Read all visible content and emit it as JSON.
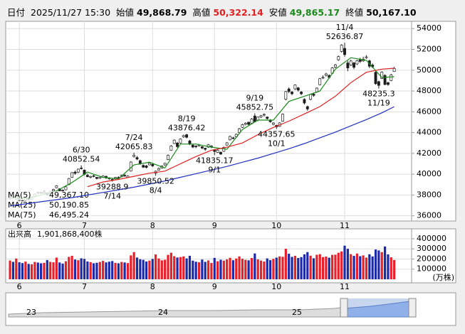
{
  "header": {
    "date_label": "日付",
    "date": "2025/11/27 15:30",
    "open_label": "始値",
    "open": "49,868.79",
    "high_label": "高値",
    "high": "50,322.14",
    "low_label": "安値",
    "low": "49,865.17",
    "close_label": "終値",
    "close": "50,167.10"
  },
  "chart_data": {
    "type": "candlestick",
    "candles": [
      [
        37620,
        37800,
        37560,
        37720
      ],
      [
        37800,
        37900,
        37640,
        37720
      ],
      [
        37600,
        38050,
        37560,
        37965
      ],
      [
        37700,
        37800,
        37420,
        37470
      ],
      [
        37550,
        37650,
        37300,
        37447
      ],
      [
        37500,
        37800,
        37450,
        37747
      ],
      [
        37700,
        37760,
        37480,
        37554
      ],
      [
        37600,
        37800,
        37530,
        37741
      ],
      [
        37850,
        38150,
        37800,
        38088
      ],
      [
        38250,
        38350,
        38100,
        38211
      ],
      [
        38250,
        38320,
        38100,
        38173
      ],
      [
        38200,
        38400,
        38150,
        38321
      ],
      [
        38200,
        38250,
        37950,
        38034
      ],
      [
        38100,
        38380,
        38050,
        38311
      ],
      [
        38400,
        38600,
        38350,
        38536
      ],
      [
        38700,
        38950,
        38650,
        38885
      ],
      [
        38600,
        38650,
        38350,
        38403
      ],
      [
        38450,
        38550,
        38250,
        38354
      ],
      [
        38500,
        38850,
        38450,
        38790
      ],
      [
        39000,
        39650,
        38950,
        39584
      ],
      [
        39700,
        40200,
        39650,
        40150
      ],
      [
        40200,
        40350,
        39950,
        40087
      ],
      [
        40200,
        40550,
        40100,
        40487
      ],
      [
        40600,
        40852.54,
        40450,
        40580
      ],
      [
        40400,
        40450,
        39900,
        39986
      ],
      [
        39900,
        40050,
        39700,
        39762
      ],
      [
        39700,
        39850,
        39600,
        39785
      ],
      [
        39850,
        39950,
        39700,
        39810
      ],
      [
        39700,
        39750,
        39500,
        39587
      ],
      [
        39600,
        39750,
        39550,
        39688
      ],
      [
        39700,
        39900,
        39650,
        39821
      ],
      [
        39800,
        39850,
        39550,
        39646
      ],
      [
        39650,
        39700,
        39450,
        39569
      ],
      [
        39500,
        39600,
        39288.9,
        39459
      ],
      [
        39550,
        39750,
        39500,
        39678
      ],
      [
        39700,
        39800,
        39550,
        39663
      ],
      [
        39750,
        39950,
        39700,
        39901
      ],
      [
        39900,
        40000,
        39750,
        39819
      ],
      [
        39700,
        39900,
        39650,
        39820
      ],
      [
        40300,
        41250,
        40250,
        41171
      ],
      [
        41700,
        42065.83,
        41600,
        41826
      ],
      [
        41600,
        41750,
        41350,
        41456
      ],
      [
        41300,
        41400,
        40900,
        40998
      ],
      [
        40850,
        40950,
        40600,
        40675
      ],
      [
        40800,
        40900,
        40550,
        40654
      ],
      [
        40900,
        41150,
        40850,
        41069
      ],
      [
        40950,
        41000,
        40700,
        40800
      ],
      [
        40100,
        40350,
        39850.52,
        40290
      ],
      [
        40400,
        40650,
        40350,
        40550
      ],
      [
        40600,
        40850,
        40550,
        40794
      ],
      [
        40900,
        41100,
        40800,
        41059
      ],
      [
        41400,
        41900,
        41350,
        41820
      ],
      [
        42300,
        42800,
        42250,
        42718
      ],
      [
        42950,
        43350,
        42900,
        43274
      ],
      [
        43000,
        43100,
        42550,
        42649
      ],
      [
        43000,
        43450,
        42950,
        43378
      ],
      [
        43600,
        43800,
        43500,
        43714
      ],
      [
        43800,
        43876.42,
        43450,
        43546
      ],
      [
        43200,
        43300,
        42800,
        42888
      ],
      [
        42800,
        42900,
        42500,
        42610
      ],
      [
        42700,
        42800,
        42500,
        42633
      ],
      [
        42750,
        42900,
        42650,
        42807
      ],
      [
        42650,
        42700,
        42400,
        42520
      ],
      [
        42500,
        42550,
        42250,
        42394
      ],
      [
        42600,
        42900,
        42550,
        42829
      ],
      [
        42700,
        42800,
        42500,
        42718
      ],
      [
        42300,
        42400,
        41835.17,
        42188
      ],
      [
        42100,
        42400,
        42050,
        42310
      ],
      [
        42100,
        42200,
        41850,
        41938
      ],
      [
        42200,
        42650,
        42150,
        42580
      ],
      [
        42800,
        43100,
        42750,
        43018
      ],
      [
        43300,
        43700,
        43250,
        43643
      ],
      [
        43500,
        43600,
        43350,
        43459
      ],
      [
        43600,
        43900,
        43550,
        43837
      ],
      [
        44000,
        44450,
        43950,
        44372
      ],
      [
        44500,
        44850,
        44450,
        44768
      ],
      [
        44800,
        45000,
        44700,
        44902
      ],
      [
        45000,
        45050,
        44700,
        44790
      ],
      [
        44900,
        45400,
        44850,
        45303
      ],
      [
        45600,
        45852.75,
        45000,
        45045
      ],
      [
        45200,
        45550,
        45100,
        45493
      ],
      [
        45500,
        45700,
        45400,
        45630
      ],
      [
        45700,
        45850,
        45550,
        45754
      ],
      [
        45500,
        45550,
        45250,
        45354
      ],
      [
        45200,
        45300,
        44950,
        45043
      ],
      [
        44800,
        45000,
        44700,
        44932
      ],
      [
        44700,
        44750,
        44357.65,
        44550
      ],
      [
        44600,
        45000,
        44550,
        44936
      ],
      [
        45100,
        45850,
        45050,
        45769
      ],
      [
        47200,
        48000,
        47100,
        47944
      ],
      [
        48200,
        48350,
        47800,
        47950
      ],
      [
        47900,
        48000,
        47600,
        47735
      ],
      [
        48200,
        48650,
        48100,
        48580
      ],
      [
        48300,
        48400,
        47950,
        48089
      ],
      [
        47900,
        48000,
        47600,
        47734
      ],
      [
        47200,
        47300,
        46700,
        46847
      ],
      [
        46500,
        46600,
        46100,
        46270
      ],
      [
        47200,
        47750,
        47100,
        47673
      ],
      [
        47700,
        47850,
        47450,
        47582
      ],
      [
        47900,
        48350,
        47850,
        48277
      ],
      [
        48600,
        49250,
        48550,
        49185
      ],
      [
        49300,
        49500,
        49150,
        49316
      ],
      [
        49500,
        49750,
        49400,
        49642
      ],
      [
        49500,
        49600,
        49200,
        49300
      ],
      [
        49700,
        50300,
        49650,
        50219
      ],
      [
        50300,
        50600,
        50200,
        50512
      ],
      [
        51000,
        51400,
        50900,
        51307
      ],
      [
        51800,
        52500,
        51700,
        52411
      ],
      [
        52100,
        52636.87,
        51300,
        51497
      ],
      [
        50700,
        50900,
        49900,
        50212
      ],
      [
        50500,
        51000,
        50400,
        50883
      ],
      [
        50700,
        50800,
        50100,
        50276
      ],
      [
        50600,
        51000,
        50500,
        50912
      ],
      [
        51000,
        51200,
        50700,
        50842
      ],
      [
        50900,
        51300,
        50800,
        51063
      ],
      [
        51200,
        51450,
        51100,
        51281
      ],
      [
        50900,
        51000,
        50200,
        50376
      ],
      [
        50500,
        50650,
        50200,
        50323
      ],
      [
        49800,
        49900,
        48600,
        48702
      ],
      [
        48900,
        49000,
        48235.3,
        48537
      ],
      [
        49200,
        49900,
        49150,
        49823
      ],
      [
        49500,
        49600,
        48550,
        48626
      ],
      [
        48800,
        48900,
        48500,
        48625
      ],
      [
        49000,
        49650,
        48950,
        49559
      ],
      [
        49868.79,
        50322.14,
        49865.17,
        50167.1
      ]
    ],
    "up_color": "#ffffff",
    "down_color": "#1a1a1a",
    "xlim": [
      -1.4,
      129.6
    ],
    "xticks": [
      {
        "value": 3,
        "label": "6"
      },
      {
        "value": 24,
        "label": "7"
      },
      {
        "value": 46,
        "label": "8"
      },
      {
        "value": 66,
        "label": "9"
      },
      {
        "value": 86,
        "label": "10"
      },
      {
        "value": 108,
        "label": "11"
      }
    ],
    "ylim": [
      35500,
      54700
    ],
    "yticks": [
      36000,
      38000,
      40000,
      42000,
      44000,
      46000,
      48000,
      50000,
      52000,
      54000
    ],
    "grid": true,
    "series": [
      {
        "name": "MA(5)",
        "color": "#1a8a1a",
        "last_label": "49,367.10",
        "x": [
          0,
          5,
          10,
          15,
          20,
          25,
          30,
          35,
          40,
          45,
          50,
          55,
          60,
          65,
          70,
          75,
          80,
          85,
          90,
          95,
          100,
          105,
          110,
          115,
          120,
          124
        ],
        "values": [
          37800,
          37650,
          38000,
          38400,
          39200,
          40200,
          39700,
          39550,
          40900,
          41150,
          40600,
          42900,
          42900,
          42600,
          42400,
          44300,
          45200,
          45200,
          47000,
          47500,
          48000,
          50100,
          51200,
          50950,
          49300,
          49367.1
        ]
      },
      {
        "name": "MA(25)",
        "color": "#e02020",
        "last_label": "50,190.85",
        "x": [
          25,
          30,
          35,
          40,
          45,
          50,
          55,
          60,
          65,
          70,
          75,
          80,
          85,
          90,
          95,
          100,
          105,
          110,
          115,
          120,
          124
        ],
        "values": [
          38800,
          39250,
          39500,
          39800,
          40100,
          40300,
          41000,
          41700,
          42300,
          42600,
          43000,
          43800,
          44500,
          45100,
          45800,
          46500,
          47500,
          48800,
          49800,
          50100,
          50190.85
        ]
      },
      {
        "name": "MA(75)",
        "color": "#2030c0",
        "last_label": "46,495.24",
        "x": [
          0,
          5,
          10,
          15,
          20,
          25,
          30,
          35,
          40,
          45,
          50,
          55,
          60,
          65,
          70,
          75,
          80,
          85,
          90,
          95,
          100,
          105,
          110,
          115,
          120,
          124
        ],
        "values": [
          36950,
          37150,
          37350,
          37550,
          37750,
          38000,
          38250,
          38500,
          38750,
          39050,
          39350,
          39700,
          40050,
          40400,
          40750,
          41150,
          41550,
          42000,
          42450,
          42950,
          43500,
          44050,
          44650,
          45250,
          45900,
          46495.24
        ]
      }
    ],
    "annotations": [
      {
        "label": "6/30",
        "value": 40852.54
      },
      {
        "label": "7/14",
        "value": 39288.9
      },
      {
        "label": "7/24",
        "value": 42065.83
      },
      {
        "label": "8/4",
        "value": 39850.52
      },
      {
        "label": "8/19",
        "value": 43876.42
      },
      {
        "label": "9/1",
        "value": 41835.17
      },
      {
        "label": "9/19",
        "value": 45852.75
      },
      {
        "label": "10/1",
        "value": 44357.65
      },
      {
        "label": "11/4",
        "value": 52636.87
      },
      {
        "label": "11/19",
        "value": 48235.3
      }
    ],
    "volume": {
      "label": "出来高",
      "total": "1,901,868,400株",
      "unit": "(万株)",
      "up_color": "#e8202a",
      "down_color": "#1c2aa8",
      "ylim": [
        0,
        470000
      ],
      "yticks": [
        100000,
        200000,
        300000,
        400000
      ],
      "values": [
        185000,
        172000,
        205000,
        168000,
        160000,
        175000,
        152000,
        148000,
        171000,
        165000,
        158000,
        162000,
        190000,
        172000,
        168000,
        214000,
        166000,
        155000,
        178000,
        221000,
        232000,
        195000,
        188000,
        207000,
        201000,
        176000,
        169000,
        158000,
        163000,
        171000,
        182000,
        167000,
        174000,
        180000,
        162000,
        158000,
        171000,
        166000,
        160000,
        236000,
        268000,
        215000,
        198000,
        192000,
        176000,
        184000,
        201000,
        245000,
        206000,
        187000,
        193000,
        241000,
        262000,
        228000,
        215000,
        219000,
        226000,
        206000,
        232000,
        184000,
        173000,
        168000,
        195000,
        172000,
        186000,
        161000,
        211000,
        178000,
        193000,
        184000,
        196000,
        212000,
        188000,
        205000,
        226000,
        203000,
        192000,
        187000,
        210000,
        255000,
        196000,
        185000,
        175000,
        206000,
        189000,
        201000,
        214000,
        226000,
        222000,
        301000,
        252000,
        221000,
        232000,
        210000,
        219000,
        246000,
        268000,
        233000,
        207000,
        242000,
        248000,
        219000,
        224000,
        213000,
        241000,
        243000,
        262000,
        275000,
        332000,
        301000,
        248000,
        231000,
        254000,
        228000,
        236000,
        214000,
        247000,
        226000,
        294000,
        285000,
        268000,
        324000,
        246000,
        217000,
        190187
      ]
    },
    "navigator": {
      "labels": [
        "23",
        "24",
        "25"
      ]
    }
  }
}
